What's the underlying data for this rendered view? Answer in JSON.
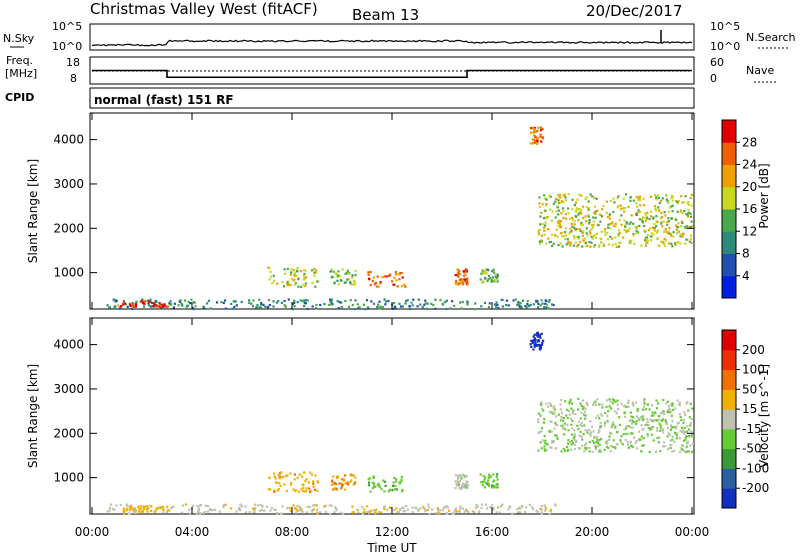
{
  "header": {
    "station": "Christmas Valley West (fitACF)",
    "beam": "Beam 13",
    "date": "20/Dec/2017"
  },
  "noise_panel": {
    "left_label": "N.Sky",
    "left_tick_top": "10^5",
    "left_tick_bottom": "10^0",
    "right_label": "N.Search",
    "right_tick_top": "10^5",
    "right_tick_bottom": "10^0"
  },
  "freq_panel": {
    "label_top": "Freq.",
    "label_unit": "[MHz]",
    "left_ticks": [
      "18",
      "8"
    ],
    "right_label": "Nave",
    "right_ticks": [
      "60",
      "0"
    ]
  },
  "cpid": {
    "label": "CPID",
    "value": "normal (fast) 151 RF"
  },
  "x_axis": {
    "label": "Time UT",
    "ticks": [
      "00:00",
      "04:00",
      "08:00",
      "12:00",
      "16:00",
      "20:00",
      "00:00"
    ]
  },
  "power_panel": {
    "ylabel": "Slant Range [km]",
    "yticks": [
      "1000",
      "2000",
      "3000",
      "4000"
    ],
    "colorbar_label": "Power [dB]",
    "colorbar_ticks": [
      "4",
      "8",
      "12",
      "16",
      "20",
      "24",
      "28"
    ],
    "colorbar_colors": [
      "#0020e0",
      "#1f4fb0",
      "#2c8a7a",
      "#4aa84a",
      "#c8d820",
      "#f0a000",
      "#f06000",
      "#e00000"
    ]
  },
  "velocity_panel": {
    "ylabel": "Slant Range [km]",
    "yticks": [
      "1000",
      "2000",
      "3000",
      "4000"
    ],
    "colorbar_label": "Velocity [m s^-1]",
    "colorbar_ticks": [
      "200",
      "100",
      "50",
      "15",
      "-15",
      "-50",
      "-100",
      "-200"
    ],
    "colorbar_colors": [
      "#1030c0",
      "#2a60a0",
      "#3a9a3a",
      "#66cc33",
      "#c0c0b0",
      "#f0b000",
      "#f07000",
      "#f03000",
      "#e00000"
    ]
  },
  "chart_data": {
    "type": "heatmap",
    "title": "Christmas Valley West (fitACF) Beam 13 20/Dec/2017",
    "xlabel": "Time UT",
    "ylabel": "Slant Range [km]",
    "x_ticks_hours": [
      0,
      4,
      8,
      12,
      16,
      20,
      24
    ],
    "ylim_km": [
      180,
      4600
    ],
    "frequency_mhz_steps": [
      {
        "from_h": 0,
        "to_h": 3,
        "value": 13
      },
      {
        "from_h": 3,
        "to_h": 15,
        "value": 10.5
      },
      {
        "from_h": 15,
        "to_h": 24,
        "value": 13
      }
    ],
    "nave_level": 12,
    "scatter_regions": [
      {
        "name": "ground",
        "t_start": 0.5,
        "t_end": 18.5,
        "r_start": 200,
        "r_end": 420,
        "power_db": 10,
        "velocity": -20
      },
      {
        "name": "patch-1",
        "t_start": 1.0,
        "t_end": 3.0,
        "r_start": 250,
        "r_end": 380,
        "power_db": 28,
        "velocity": -50
      },
      {
        "name": "e-region-a",
        "t_start": 7.0,
        "t_end": 9.0,
        "r_start": 700,
        "r_end": 1150,
        "power_db": 18,
        "velocity": -60
      },
      {
        "name": "e-region-b",
        "t_start": 9.5,
        "t_end": 10.5,
        "r_start": 750,
        "r_end": 1100,
        "power_db": 16,
        "velocity": -70
      },
      {
        "name": "e-region-c",
        "t_start": 11.0,
        "t_end": 12.5,
        "r_start": 700,
        "r_end": 1050,
        "power_db": 26,
        "velocity": 20
      },
      {
        "name": "e-region-d",
        "t_start": 14.5,
        "t_end": 15.0,
        "r_start": 750,
        "r_end": 1100,
        "power_db": 26,
        "velocity": -15
      },
      {
        "name": "e-region-e",
        "t_start": 15.5,
        "t_end": 16.2,
        "r_start": 800,
        "r_end": 1100,
        "power_db": 14,
        "velocity": 20
      },
      {
        "name": "f-region",
        "t_start": 17.8,
        "t_end": 24.0,
        "r_start": 1600,
        "r_end": 2800,
        "power_db": 18,
        "velocity": 0
      },
      {
        "name": "high-burst",
        "t_start": 17.5,
        "t_end": 18.0,
        "r_start": 3900,
        "r_end": 4300,
        "power_db": 24,
        "velocity": 200
      }
    ]
  }
}
